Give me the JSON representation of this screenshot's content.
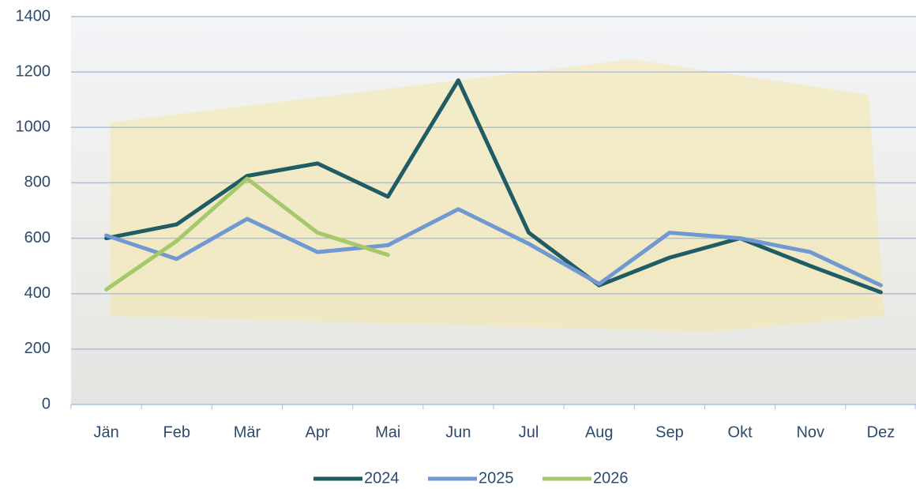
{
  "chart_data": {
    "type": "line",
    "categories": [
      "Jän",
      "Feb",
      "Mär",
      "Apr",
      "Mai",
      "Jun",
      "Jul",
      "Aug",
      "Sep",
      "Okt",
      "Nov",
      "Dez"
    ],
    "series": [
      {
        "name": "2024",
        "color": "#1f5c63",
        "values": [
          600,
          650,
          825,
          870,
          750,
          1170,
          620,
          430,
          530,
          600,
          500,
          405
        ]
      },
      {
        "name": "2025",
        "color": "#7199d1",
        "values": [
          610,
          525,
          670,
          550,
          575,
          705,
          580,
          435,
          620,
          600,
          550,
          430
        ]
      },
      {
        "name": "2026",
        "color": "#a5c86b",
        "values": [
          415,
          590,
          815,
          620,
          540,
          null,
          null,
          null,
          null,
          null,
          null,
          null
        ]
      }
    ],
    "ylim": [
      0,
      1400
    ],
    "yticks": [
      0,
      200,
      400,
      600,
      800,
      1000,
      1200,
      1400
    ],
    "grid": true,
    "legend": "bottom"
  }
}
